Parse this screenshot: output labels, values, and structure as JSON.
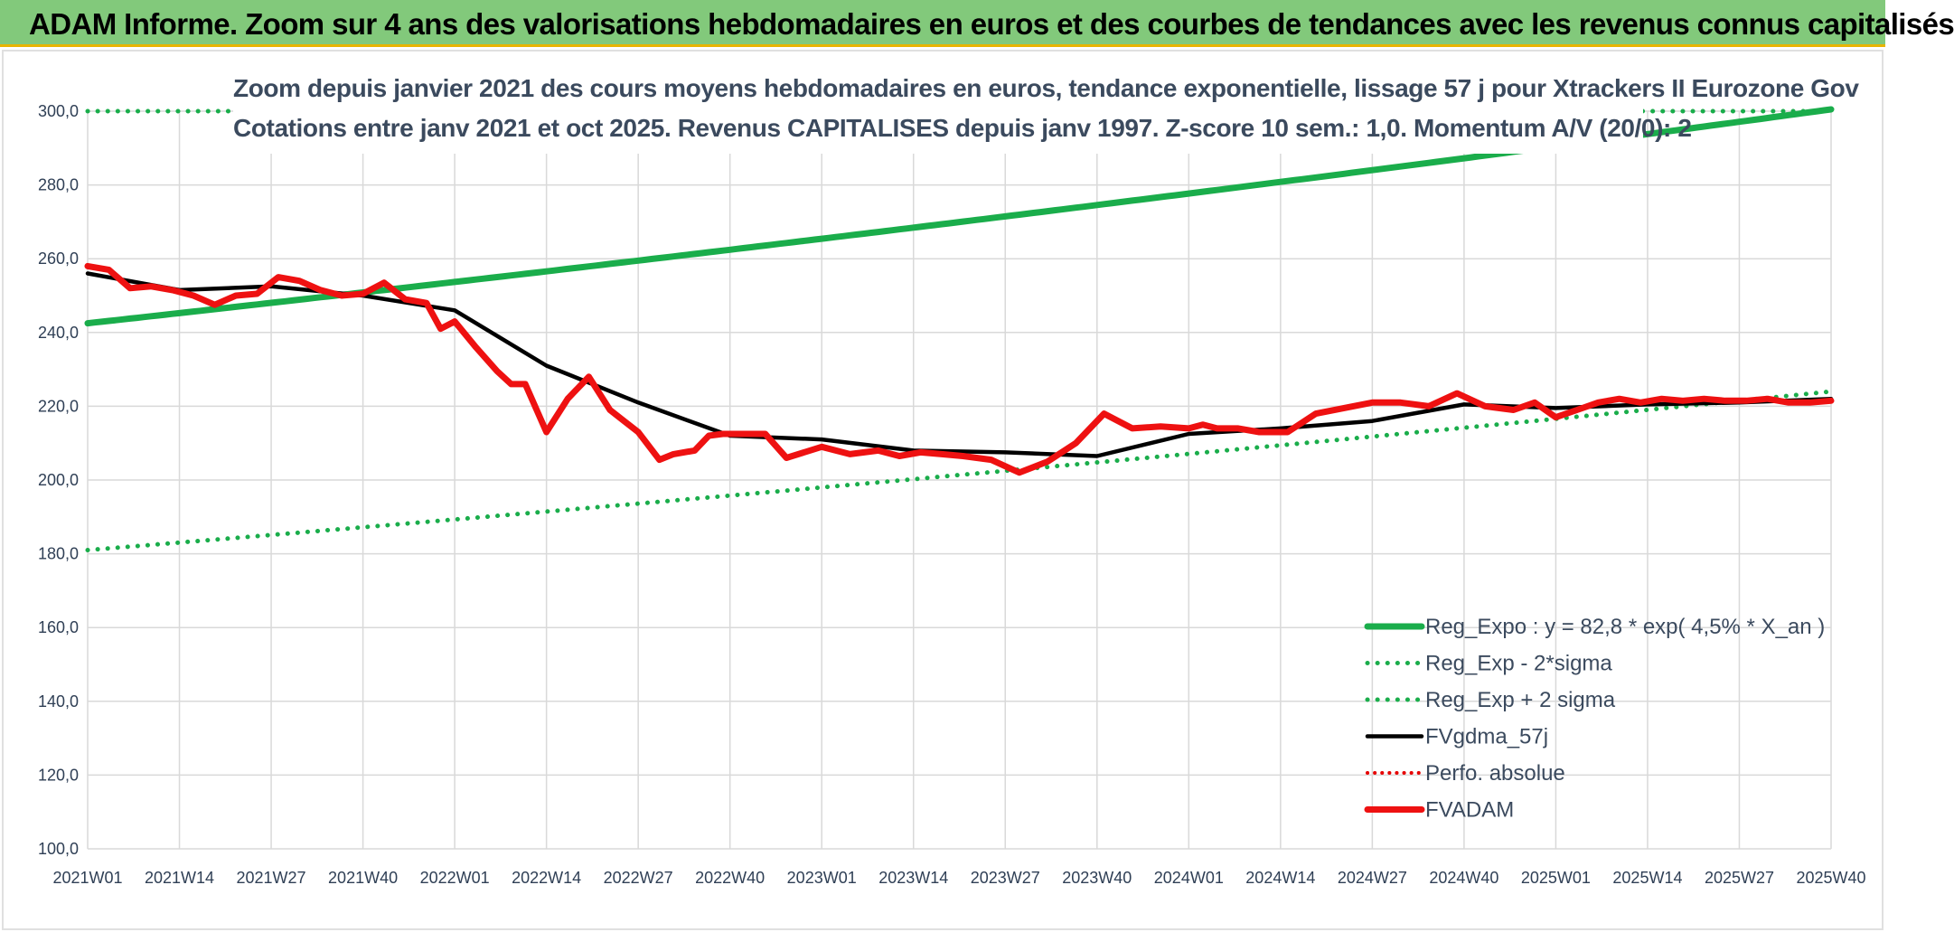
{
  "header": {
    "title": "ADAM Informe. Zoom sur 4 ans des valorisations hebdomadaires en euros et des courbes de tendances avec les revenus connus capitalisés"
  },
  "colors": {
    "banner": "#82c97b",
    "trend": "#1aad4b",
    "band": "#1aad4b",
    "moving_average": "#000000",
    "performance": "#e60000",
    "fund": "#ee1111",
    "grid": "#d9d9d9"
  },
  "chart_data": {
    "type": "line",
    "title": "Zoom depuis janvier 2021 des cours moyens hebdomadaires en euros, tendance exponentielle, lissage 57 j pour Xtrackers II Eurozone Gov",
    "subtitle": "Cotations entre janv 2021 et oct 2025. Revenus CAPITALISES depuis janv 1997. Z-score 10 sem.: 1,0. Momentum A/V (20/0): 2",
    "xlabel": "",
    "ylabel": "",
    "ylim": [
      100,
      300
    ],
    "y_ticks": [
      "100,0",
      "120,0",
      "140,0",
      "160,0",
      "180,0",
      "200,0",
      "220,0",
      "240,0",
      "260,0",
      "280,0",
      "300,0"
    ],
    "x_ticks": [
      "2021W01",
      "2021W14",
      "2021W27",
      "2021W40",
      "2022W01",
      "2022W14",
      "2022W27",
      "2022W40",
      "2023W01",
      "2023W14",
      "2023W27",
      "2023W40",
      "2024W01",
      "2024W14",
      "2024W27",
      "2024W40",
      "2025W01",
      "2025W14",
      "2025W27",
      "2025W40"
    ],
    "x_range_weeks": [
      0,
      247
    ],
    "grid": true,
    "legend_position": "bottom-right",
    "series": [
      {
        "name": "Reg_Expo : y = 82,8 * exp( 4,5% *  X_an )",
        "style": "solid-thick",
        "x": [
          0,
          247
        ],
        "values": [
          242.5,
          300.5
        ]
      },
      {
        "name": "Reg_Exp - 2*sigma",
        "style": "dotted",
        "x": [
          0,
          247
        ],
        "values": [
          181.0,
          224.0
        ]
      },
      {
        "name": "Reg_Exp + 2 sigma",
        "style": "dotted",
        "x": [
          0,
          247
        ],
        "values": [
          300.0,
          300.0
        ]
      },
      {
        "name": "FVgdma_57j",
        "style": "solid",
        "x": [
          0,
          13,
          26,
          39,
          52,
          65,
          78,
          91,
          104,
          117,
          130,
          143,
          156,
          169,
          182,
          195,
          208,
          221,
          234,
          247
        ],
        "values": [
          256,
          251.5,
          252.5,
          250,
          246,
          231,
          221,
          212,
          211,
          208,
          207.5,
          206.5,
          212.5,
          214,
          216,
          220.5,
          219.5,
          220.5,
          221,
          222
        ]
      },
      {
        "name": "Perfo. absolue",
        "style": "dotted",
        "x": [],
        "values": []
      },
      {
        "name": "FVADAM",
        "style": "solid-thick",
        "x": [
          0,
          3,
          6,
          9,
          12,
          15,
          18,
          21,
          24,
          27,
          30,
          33,
          36,
          39,
          42,
          45,
          48,
          50,
          52,
          55,
          58,
          60,
          62,
          65,
          68,
          71,
          74,
          76,
          78,
          81,
          83,
          86,
          88,
          90,
          91,
          93,
          96,
          99,
          104,
          108,
          112,
          115,
          118,
          121,
          124,
          128,
          132,
          136,
          140,
          144,
          148,
          152,
          156,
          158,
          160,
          163,
          166,
          170,
          174,
          178,
          182,
          186,
          190,
          194,
          198,
          202,
          205,
          208,
          211,
          214,
          217,
          220,
          223,
          226,
          229,
          232,
          235,
          238,
          241,
          244,
          247
        ],
        "values": [
          258,
          257,
          252,
          252.5,
          251.5,
          250,
          247.5,
          250,
          250.5,
          255,
          254,
          251.5,
          250,
          250.5,
          253.5,
          249,
          248,
          241,
          243,
          236,
          229.5,
          226,
          226,
          213,
          222,
          228,
          219,
          216,
          213,
          205.5,
          207,
          208,
          212,
          212.5,
          212.5,
          212.5,
          212.5,
          206,
          209,
          207,
          208,
          206.5,
          207.5,
          207,
          206.5,
          205.5,
          202,
          205,
          210,
          218,
          214,
          214.5,
          214,
          215,
          214,
          214,
          213,
          213,
          218,
          219.5,
          221,
          221,
          220,
          223.5,
          220,
          219,
          221,
          217,
          219,
          221,
          222,
          221,
          222,
          221.5,
          222,
          221.5,
          221.5,
          222,
          221,
          221,
          221.5
        ]
      }
    ]
  }
}
